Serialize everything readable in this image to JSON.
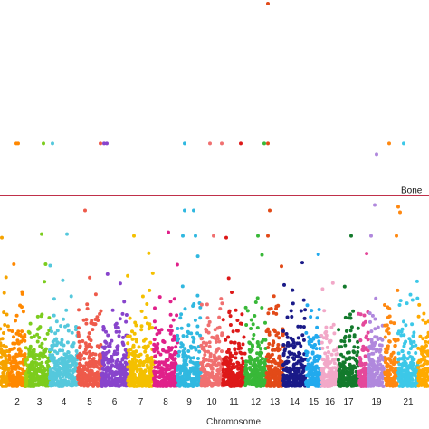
{
  "chart_data": {
    "type": "scatter",
    "title": "",
    "xlabel": "Chromosome",
    "ylabel": "",
    "ylim": [
      0,
      10.6
    ],
    "grid": false,
    "legend": "none",
    "chromosomes": [
      {
        "label": "",
        "start": 0,
        "end": 10,
        "color": "#f5a300",
        "tick": false
      },
      {
        "label": "2",
        "start": 10,
        "end": 28,
        "color": "#ff8800",
        "tick": true
      },
      {
        "label": "",
        "start": 28,
        "end": 32,
        "color": "#a0d010",
        "tick": false
      },
      {
        "label": "3",
        "start": 32,
        "end": 55,
        "color": "#7ccc1e",
        "tick": true
      },
      {
        "label": "4",
        "start": 55,
        "end": 86,
        "color": "#55c8dc",
        "tick": true
      },
      {
        "label": "5",
        "start": 86,
        "end": 112,
        "color": "#ee5a4a",
        "tick": true
      },
      {
        "label": "6",
        "start": 112,
        "end": 141,
        "color": "#8844cc",
        "tick": true
      },
      {
        "label": "7",
        "start": 141,
        "end": 170,
        "color": "#f4c000",
        "tick": true
      },
      {
        "label": "8",
        "start": 170,
        "end": 196,
        "color": "#e0208a",
        "tick": true
      },
      {
        "label": "9",
        "start": 196,
        "end": 222,
        "color": "#30b8e0",
        "tick": true
      },
      {
        "label": "10",
        "start": 222,
        "end": 246,
        "color": "#f07070",
        "tick": true
      },
      {
        "label": "11",
        "start": 246,
        "end": 271,
        "color": "#dd1818",
        "tick": true
      },
      {
        "label": "12",
        "start": 271,
        "end": 294,
        "color": "#38b838",
        "tick": true
      },
      {
        "label": "13",
        "start": 294,
        "end": 313,
        "color": "#e24a18",
        "tick": true
      },
      {
        "label": "14",
        "start": 313,
        "end": 338,
        "color": "#1a1a88",
        "tick": true
      },
      {
        "label": "15",
        "start": 338,
        "end": 355,
        "color": "#22aaee",
        "tick": true
      },
      {
        "label": "16",
        "start": 355,
        "end": 374,
        "color": "#f2a8c8",
        "tick": true
      },
      {
        "label": "17",
        "start": 374,
        "end": 396,
        "color": "#137a2c",
        "tick": true
      },
      {
        "label": "",
        "start": 396,
        "end": 407,
        "color": "#e4489a",
        "tick": false
      },
      {
        "label": "19",
        "start": 407,
        "end": 425,
        "color": "#b088dd",
        "tick": true
      },
      {
        "label": "",
        "start": 425,
        "end": 440,
        "color": "#ff8810",
        "tick": false
      },
      {
        "label": "21",
        "start": 440,
        "end": 462,
        "color": "#3cc8e8",
        "tick": true
      },
      {
        "label": "",
        "start": 462,
        "end": 474,
        "color": "#ffaa00",
        "tick": false
      }
    ],
    "threshold": {
      "value": 5.25,
      "label": "Bone",
      "color": "#c0304a"
    },
    "significant_points": [
      {
        "x": 18,
        "y": 6.7,
        "c": 1
      },
      {
        "x": 20,
        "y": 6.7,
        "c": 1
      },
      {
        "x": 48,
        "y": 6.7,
        "c": 3
      },
      {
        "x": 58,
        "y": 6.7,
        "c": 4
      },
      {
        "x": 111,
        "y": 6.7,
        "c": 5
      },
      {
        "x": 115,
        "y": 6.7,
        "c": 6
      },
      {
        "x": 118,
        "y": 6.7,
        "c": 6
      },
      {
        "x": 204,
        "y": 6.7,
        "c": 9
      },
      {
        "x": 232,
        "y": 6.7,
        "c": 10
      },
      {
        "x": 245,
        "y": 6.7,
        "c": 10
      },
      {
        "x": 266,
        "y": 6.7,
        "c": 11
      },
      {
        "x": 292,
        "y": 6.7,
        "c": 12
      },
      {
        "x": 296,
        "y": 6.7,
        "c": 13
      },
      {
        "x": 296,
        "y": 10.55,
        "c": 13
      },
      {
        "x": 416,
        "y": 6.4,
        "c": 19
      },
      {
        "x": 446,
        "y": 6.7,
        "c": 21
      },
      {
        "x": 430,
        "y": 6.7,
        "c": 20
      },
      {
        "x": 414,
        "y": 5.0,
        "c": 19
      },
      {
        "x": 440,
        "y": 4.95,
        "c": 20
      },
      {
        "x": 442,
        "y": 4.8,
        "c": 20
      },
      {
        "x": 94,
        "y": 4.85,
        "c": 5
      },
      {
        "x": 204,
        "y": 4.85,
        "c": 9
      },
      {
        "x": 214,
        "y": 4.85,
        "c": 9
      },
      {
        "x": 298,
        "y": 4.85,
        "c": 13
      },
      {
        "x": 2,
        "y": 4.1,
        "c": 0
      },
      {
        "x": 46,
        "y": 4.2,
        "c": 3
      },
      {
        "x": 74,
        "y": 4.2,
        "c": 4
      },
      {
        "x": 148,
        "y": 4.15,
        "c": 7
      },
      {
        "x": 186,
        "y": 4.25,
        "c": 8
      },
      {
        "x": 202,
        "y": 4.15,
        "c": 9
      },
      {
        "x": 216,
        "y": 4.15,
        "c": 9
      },
      {
        "x": 236,
        "y": 4.15,
        "c": 10
      },
      {
        "x": 250,
        "y": 4.1,
        "c": 11
      },
      {
        "x": 285,
        "y": 4.15,
        "c": 12
      },
      {
        "x": 296,
        "y": 4.15,
        "c": 13
      },
      {
        "x": 388,
        "y": 4.15,
        "c": 17
      },
      {
        "x": 410,
        "y": 4.15,
        "c": 19
      },
      {
        "x": 438,
        "y": 4.15,
        "c": 20
      }
    ]
  }
}
